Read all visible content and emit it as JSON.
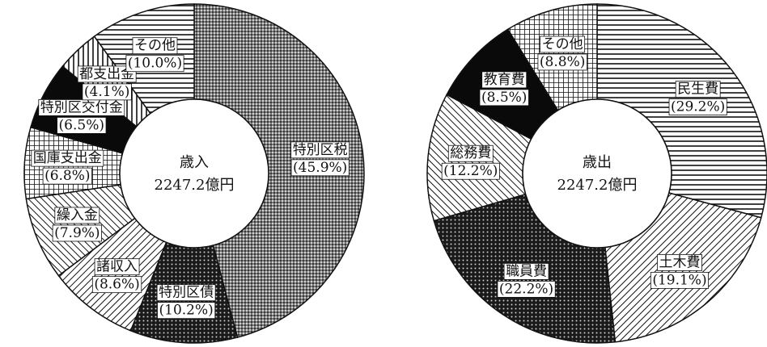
{
  "chart_data": [
    {
      "type": "pie",
      "style": "donut",
      "center_title": "歳入",
      "center_total": "2247.2億円",
      "series": [
        {
          "name": "特別区税",
          "value": 45.9,
          "pct_label": "(45.9%)",
          "pattern": "dots-fine"
        },
        {
          "name": "特別区債",
          "value": 10.2,
          "pct_label": "(10.2%)",
          "pattern": "dots-dark"
        },
        {
          "name": "諸収入",
          "value": 8.6,
          "pct_label": "(8.6%)",
          "pattern": "diag-right"
        },
        {
          "name": "繰入金",
          "value": 7.9,
          "pct_label": "(7.9%)",
          "pattern": "diag-left"
        },
        {
          "name": "国庫支出金",
          "value": 6.8,
          "pct_label": "(6.8%)",
          "pattern": "grid"
        },
        {
          "name": "特別区交付金",
          "value": 6.5,
          "pct_label": "(6.5%)",
          "pattern": "solid"
        },
        {
          "name": "都支出金",
          "value": 4.1,
          "pct_label": "(4.1%)",
          "pattern": "vertical"
        },
        {
          "name": "その他",
          "value": 10.0,
          "pct_label": "(10.0%)",
          "pattern": "horizontal"
        }
      ]
    },
    {
      "type": "pie",
      "style": "donut",
      "center_title": "歳出",
      "center_total": "2247.2億円",
      "series": [
        {
          "name": "民生費",
          "value": 29.2,
          "pct_label": "(29.2%)",
          "pattern": "horizontal"
        },
        {
          "name": "土木費",
          "value": 19.1,
          "pct_label": "(19.1%)",
          "pattern": "diag-right"
        },
        {
          "name": "職員費",
          "value": 22.2,
          "pct_label": "(22.2%)",
          "pattern": "dots-dark"
        },
        {
          "name": "総務費",
          "value": 12.2,
          "pct_label": "(12.2%)",
          "pattern": "diag-left"
        },
        {
          "name": "教育費",
          "value": 8.5,
          "pct_label": "(8.5%)",
          "pattern": "solid"
        },
        {
          "name": "その他",
          "value": 8.8,
          "pct_label": "(8.8%)",
          "pattern": "grid"
        }
      ]
    }
  ]
}
